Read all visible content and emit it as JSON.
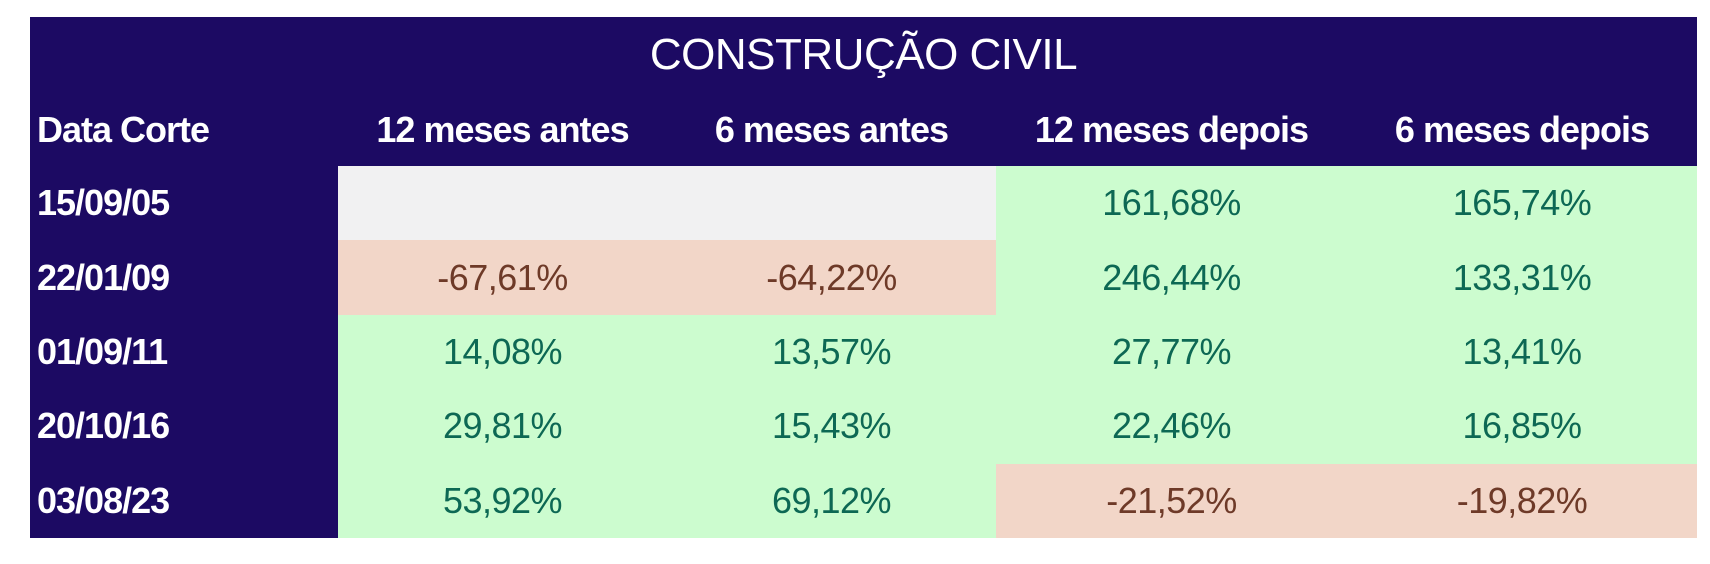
{
  "table": {
    "title": "CONSTRUÇÃO CIVIL",
    "columns": [
      "Data Corte",
      "12 meses antes",
      "6 meses antes",
      "12 meses depois",
      "6 meses depois"
    ],
    "rows": [
      {
        "date": "15/09/05",
        "values": [
          "",
          "",
          "161,68%",
          "165,74%"
        ],
        "states": [
          "empty",
          "empty",
          "pos",
          "pos"
        ]
      },
      {
        "date": "22/01/09",
        "values": [
          "-67,61%",
          "-64,22%",
          "246,44%",
          "133,31%"
        ],
        "states": [
          "neg",
          "neg",
          "pos",
          "pos"
        ]
      },
      {
        "date": "01/09/11",
        "values": [
          "14,08%",
          "13,57%",
          "27,77%",
          "13,41%"
        ],
        "states": [
          "pos",
          "pos",
          "pos",
          "pos"
        ]
      },
      {
        "date": "20/10/16",
        "values": [
          "29,81%",
          "15,43%",
          "22,46%",
          "16,85%"
        ],
        "states": [
          "pos",
          "pos",
          "pos",
          "pos"
        ]
      },
      {
        "date": "03/08/23",
        "values": [
          "53,92%",
          "69,12%",
          "-21,52%",
          "-19,82%"
        ],
        "states": [
          "pos",
          "pos",
          "neg",
          "neg"
        ]
      }
    ]
  },
  "colors": {
    "header_bg": "#1c0a63",
    "header_text": "#ffffff",
    "positive_bg": "#ccfccf",
    "positive_text": "#0d6854",
    "negative_bg": "#f2d6c8",
    "negative_text": "#6e3a28",
    "empty_bg": "#f1f1f2",
    "page_bg": "#ffffff"
  },
  "chart_data": {
    "type": "table",
    "title": "CONSTRUÇÃO CIVIL",
    "columns": [
      "Data Corte",
      "12 meses antes",
      "6 meses antes",
      "12 meses depois",
      "6 meses depois"
    ],
    "rows": [
      {
        "data_corte": "15/09/05",
        "meses_antes_12": null,
        "meses_antes_6": null,
        "meses_depois_12": 161.68,
        "meses_depois_6": 165.74
      },
      {
        "data_corte": "22/01/09",
        "meses_antes_12": -67.61,
        "meses_antes_6": -64.22,
        "meses_depois_12": 246.44,
        "meses_depois_6": 133.31
      },
      {
        "data_corte": "01/09/11",
        "meses_antes_12": 14.08,
        "meses_antes_6": 13.57,
        "meses_depois_12": 27.77,
        "meses_depois_6": 13.41
      },
      {
        "data_corte": "20/10/16",
        "meses_antes_12": 29.81,
        "meses_antes_6": 15.43,
        "meses_depois_12": 22.46,
        "meses_depois_6": 16.85
      },
      {
        "data_corte": "03/08/23",
        "meses_antes_12": 53.92,
        "meses_antes_6": 69.12,
        "meses_depois_12": -21.52,
        "meses_depois_6": -19.82
      }
    ],
    "units": "percent",
    "notes": "green cell = positive value, salmon cell = negative value, gray cell = no data"
  }
}
